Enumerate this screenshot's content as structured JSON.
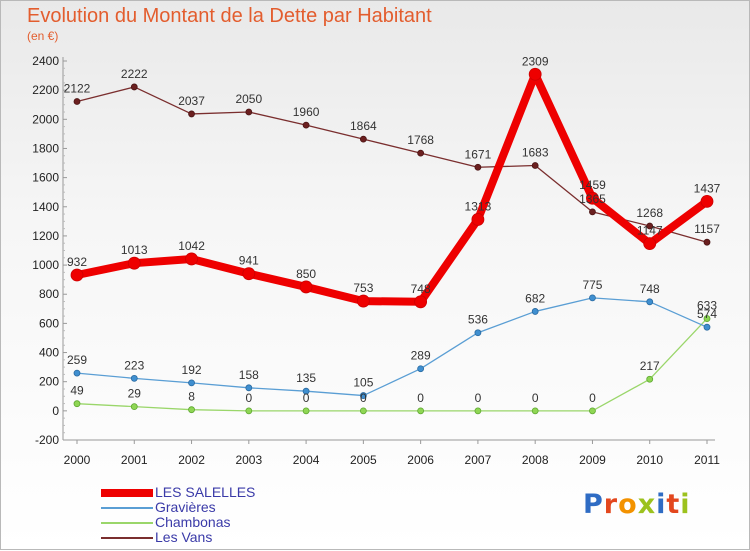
{
  "title": "Evolution du Montant de la Dette par Habitant",
  "unit": "(en €)",
  "logo": "Proxiti",
  "colors": {
    "title": "#e35d2e",
    "legend_text": "#3a3aa8",
    "logo": [
      "#2f6cc4",
      "#e3471e",
      "#f39200",
      "#9cc21e",
      "#2f6cc4",
      "#e3471e",
      "#9cc21e"
    ]
  },
  "chart_data": {
    "type": "line",
    "title": "Evolution du Montant de la Dette par Habitant",
    "ylabel": "(en €)",
    "xlabel": "",
    "x": [
      "2000",
      "2001",
      "2002",
      "2003",
      "2004",
      "2005",
      "2006",
      "2007",
      "2008",
      "2009",
      "2010",
      "2011"
    ],
    "ylim": [
      -200,
      2400
    ],
    "yticks": [
      -200,
      0,
      200,
      400,
      600,
      800,
      1000,
      1200,
      1400,
      1600,
      1800,
      2000,
      2200,
      2400
    ],
    "grid": false,
    "legend_position": "bottom-left",
    "series": [
      {
        "name": "LES SALELLES",
        "color": "#ee0000",
        "values": [
          932,
          1013,
          1042,
          941,
          850,
          753,
          748,
          1313,
          2309,
          1459,
          1147,
          1437
        ]
      },
      {
        "name": "Gravières",
        "color": "#5a9ed4",
        "values": [
          259,
          223,
          192,
          158,
          135,
          105,
          289,
          536,
          682,
          775,
          748,
          574
        ]
      },
      {
        "name": "Chambonas",
        "color": "#9ad66a",
        "values": [
          49,
          29,
          8,
          0,
          0,
          0,
          0,
          0,
          0,
          0,
          217,
          633
        ]
      },
      {
        "name": "Les Vans",
        "color": "#7a2e2e",
        "values": [
          2122,
          2222,
          2037,
          2050,
          1960,
          1864,
          1768,
          1671,
          1683,
          1365,
          1268,
          1157
        ]
      }
    ]
  }
}
